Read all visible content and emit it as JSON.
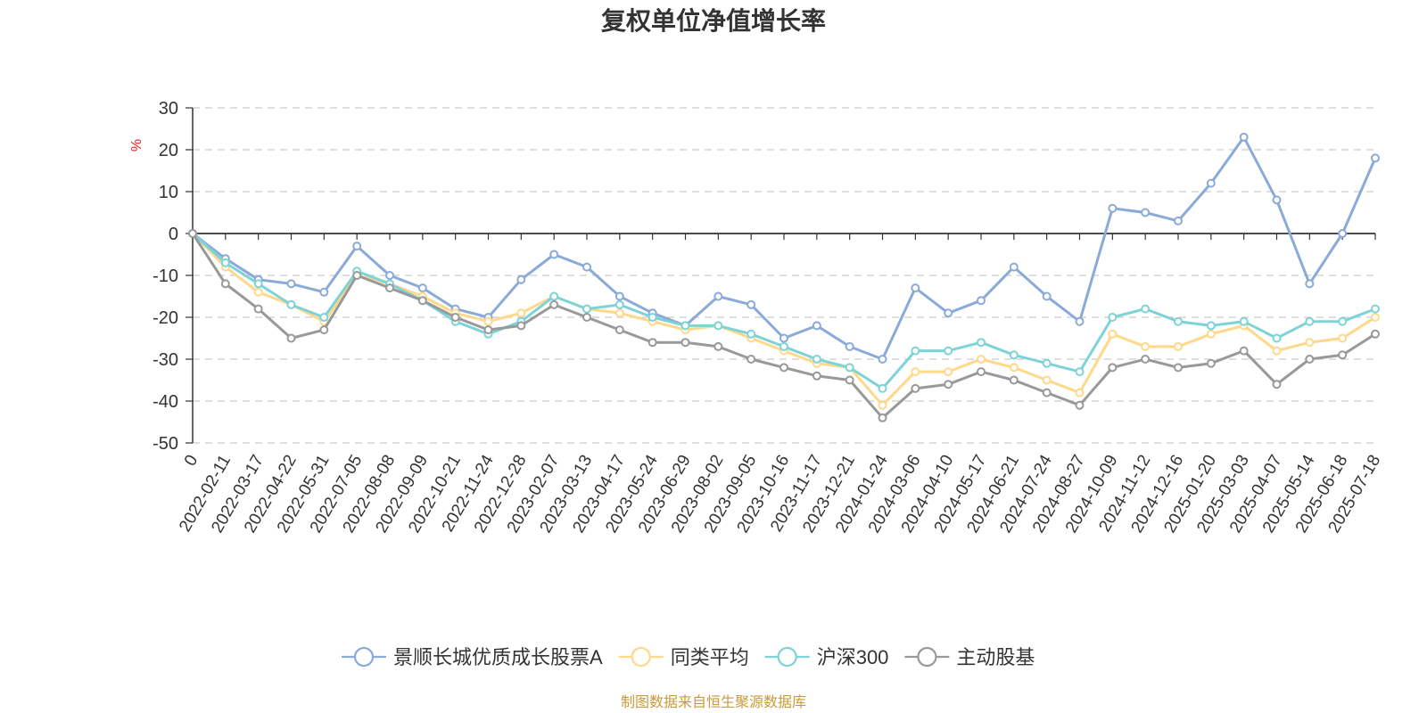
{
  "chart_data": {
    "type": "line",
    "title": "复权单位净值增长率",
    "ylabel": "%",
    "ylim": [
      -50,
      30
    ],
    "yticks": [
      30,
      20,
      10,
      0,
      -10,
      -20,
      -30,
      -40,
      -50
    ],
    "grid": true,
    "legend_position": "bottom",
    "x_tick_labels": [
      "0",
      "2022-02-11",
      "2022-03-17",
      "2022-04-22",
      "2022-05-31",
      "2022-07-05",
      "2022-08-08",
      "2022-09-09",
      "2022-10-21",
      "2022-11-24",
      "2022-12-28",
      "2023-02-07",
      "2023-03-13",
      "2023-04-17",
      "2023-05-24",
      "2023-06-29",
      "2023-08-02",
      "2023-09-05",
      "2023-10-16",
      "2023-11-17",
      "2023-12-21",
      "2024-01-24",
      "2024-03-06",
      "2024-04-10",
      "2024-05-17",
      "2024-06-21",
      "2024-07-24",
      "2024-08-27",
      "2024-10-09",
      "2024-11-12",
      "2024-12-16",
      "2025-01-20",
      "2025-03-03",
      "2025-04-07",
      "2025-05-14",
      "2025-06-18",
      "2025-07-18"
    ],
    "series": [
      {
        "name": "景顺长城优质成长股票A",
        "color": "#8aaad8",
        "values": [
          0,
          -6,
          -11,
          -12,
          -14,
          -3,
          -10,
          -13,
          -18,
          -20,
          -11,
          -5,
          -8,
          -15,
          -19,
          -22,
          -15,
          -17,
          -25,
          -22,
          -27,
          -30,
          -13,
          -19,
          -16,
          -8,
          -15,
          -21,
          6,
          5,
          3,
          12,
          23,
          8,
          -12,
          0,
          18
        ]
      },
      {
        "name": "同类平均",
        "color": "#ffd88a",
        "values": [
          0,
          -8,
          -14,
          -17,
          -21,
          -10,
          -12,
          -15,
          -19,
          -21,
          -19,
          -15,
          -18,
          -19,
          -21,
          -23,
          -22,
          -25,
          -28,
          -31,
          -32,
          -41,
          -33,
          -33,
          -30,
          -32,
          -35,
          -38,
          -24,
          -27,
          -27,
          -24,
          -22,
          -28,
          -26,
          -25,
          -20
        ]
      },
      {
        "name": "沪深300",
        "color": "#7dd3d8",
        "values": [
          0,
          -7,
          -12,
          -17,
          -20,
          -9,
          -12,
          -16,
          -21,
          -24,
          -21,
          -15,
          -18,
          -17,
          -20,
          -22,
          -22,
          -24,
          -27,
          -30,
          -32,
          -37,
          -28,
          -28,
          -26,
          -29,
          -31,
          -33,
          -20,
          -18,
          -21,
          -22,
          -21,
          -25,
          -21,
          -21,
          -18
        ]
      },
      {
        "name": "主动股基",
        "color": "#999999",
        "values": [
          0,
          -12,
          -18,
          -25,
          -23,
          -10,
          -13,
          -16,
          -20,
          -23,
          -22,
          -17,
          -20,
          -23,
          -26,
          -26,
          -27,
          -30,
          -32,
          -34,
          -35,
          -44,
          -37,
          -36,
          -33,
          -35,
          -38,
          -41,
          -32,
          -30,
          -32,
          -31,
          -28,
          -36,
          -30,
          -29,
          -24
        ]
      }
    ]
  },
  "source_note": "制图数据来自恒生聚源数据库"
}
